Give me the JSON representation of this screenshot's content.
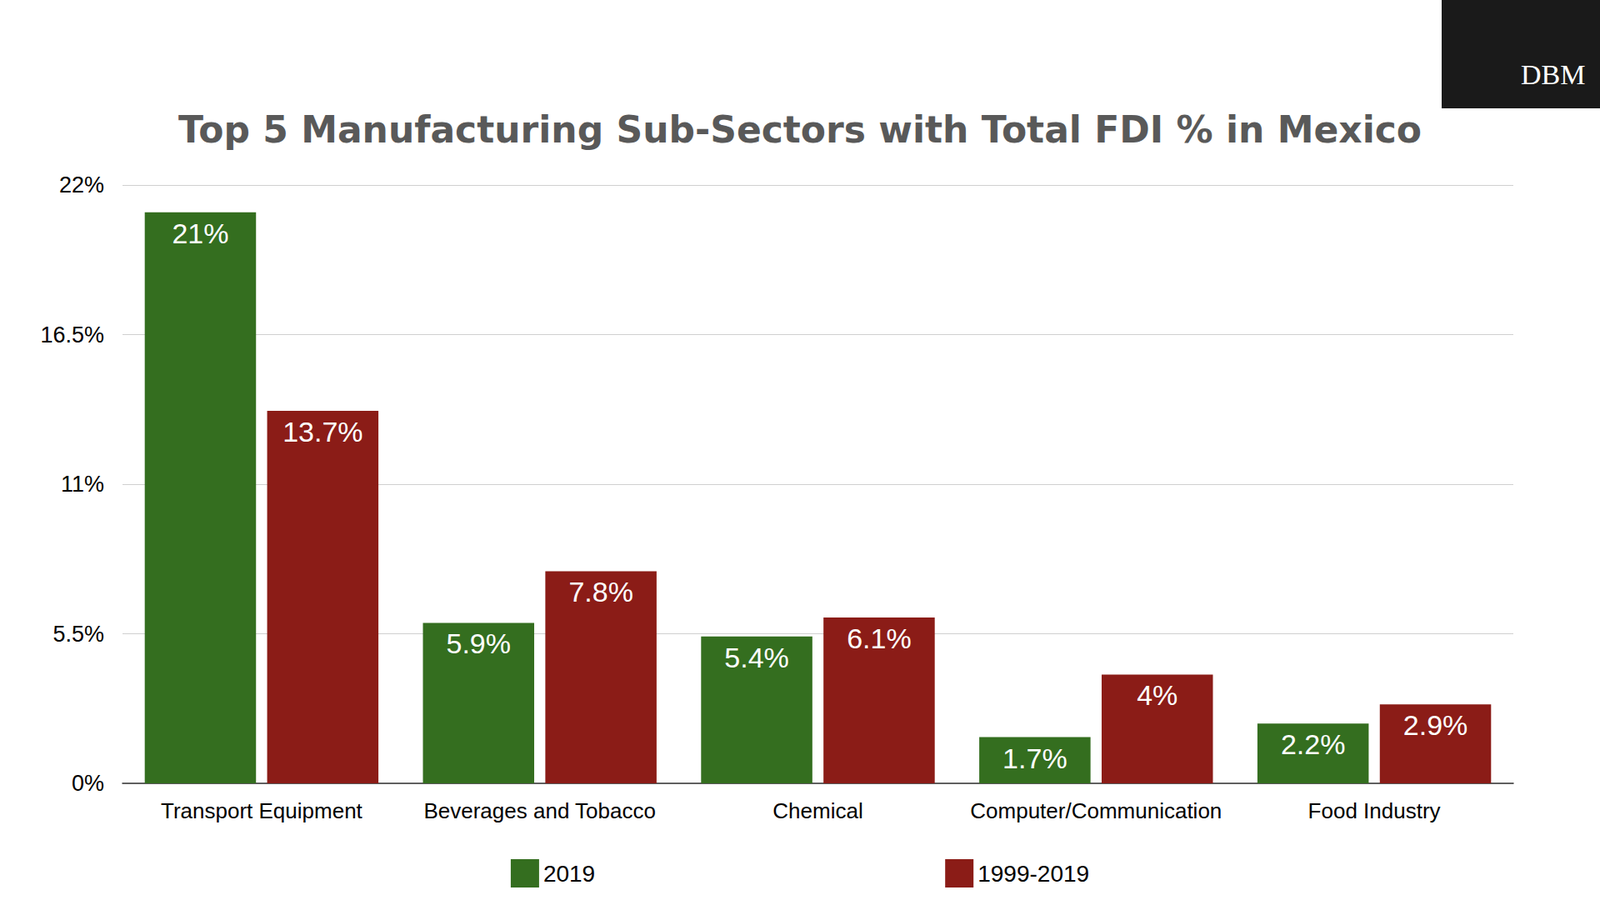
{
  "chart_data": {
    "type": "bar",
    "title": "Top 5 Manufacturing Sub-Sectors with Total FDI % in Mexico",
    "annotations": [
      "DBM"
    ],
    "categories": [
      "Transport Equipment",
      "Beverages and Tobacco",
      "Chemical",
      "Computer/Communication",
      "Food Industry"
    ],
    "series": [
      {
        "name": "2019",
        "color": "#346e1f",
        "values": [
          21,
          5.9,
          5.4,
          1.7,
          2.2
        ],
        "value_labels": [
          "21%",
          "5.9%",
          "5.4%",
          "1.7%",
          "2.2%"
        ]
      },
      {
        "name": "1999-2019",
        "color": "#8b1c17",
        "values": [
          13.7,
          7.8,
          6.1,
          4,
          2.9
        ],
        "value_labels": [
          "13.7%",
          "7.8%",
          "6.1%",
          "4%",
          "2.9%"
        ]
      }
    ],
    "ylim": [
      0,
      22
    ],
    "yticks": [
      {
        "value": 0,
        "label": "0%"
      },
      {
        "value": 5.5,
        "label": "5.5%"
      },
      {
        "value": 11,
        "label": "11%"
      },
      {
        "value": 16.5,
        "label": "16.5%"
      },
      {
        "value": 22,
        "label": "22%"
      }
    ],
    "grid": true,
    "legend": "bottom",
    "data_labels": true
  }
}
